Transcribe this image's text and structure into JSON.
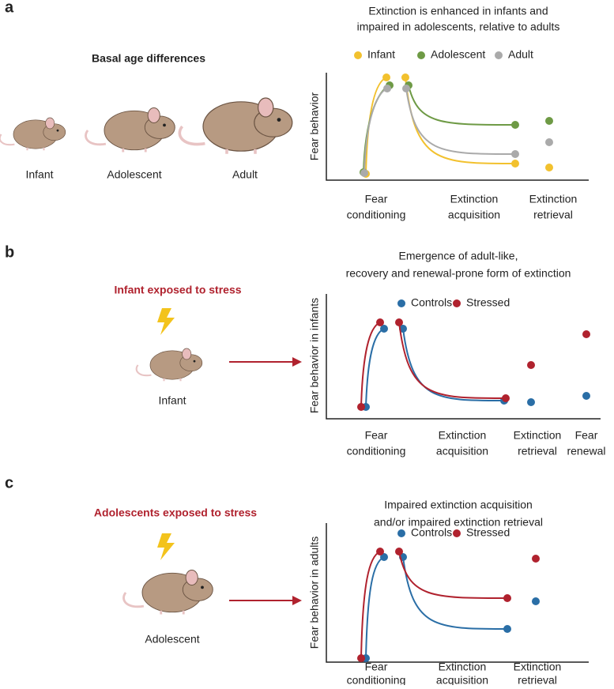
{
  "panels": [
    {
      "label": "a",
      "left": {
        "title": "Basal age differences",
        "mice": [
          "Infant",
          "Adolescent",
          "Adult"
        ]
      },
      "right": {
        "title": [
          "Extinction is enhanced in infants and",
          "impaired in adolescents, relative to adults"
        ],
        "legend": [
          {
            "name": "Infant",
            "color": "#f2c12e"
          },
          {
            "name": "Adolescent",
            "color": "#6e9a45"
          },
          {
            "name": "Adult",
            "color": "#aaaaaa"
          }
        ],
        "y_label": "Fear behavior",
        "phases": [
          [
            "Fear",
            "conditioning"
          ],
          [
            "Extinction",
            "acquisition"
          ],
          [
            "Extinction",
            "retrieval"
          ]
        ]
      }
    },
    {
      "label": "b",
      "left": {
        "title": "Infant exposed to stress",
        "mice": [
          "Infant"
        ]
      },
      "right": {
        "title": [
          "Emergence of adult-like,",
          "recovery and renewal-prone form of extinction"
        ],
        "legend": [
          {
            "name": "Controls",
            "color": "#2a6ea6"
          },
          {
            "name": "Stressed",
            "color": "#b0222e"
          }
        ],
        "y_label": "Fear behavior in infants",
        "phases": [
          [
            "Fear",
            "conditioning"
          ],
          [
            "Extinction",
            "acquisition"
          ],
          [
            "Extinction",
            "retrieval"
          ],
          [
            "Fear",
            "renewal"
          ]
        ]
      }
    },
    {
      "label": "c",
      "left": {
        "title": "Adolescents exposed to stress",
        "mice": [
          "Adolescent"
        ]
      },
      "right": {
        "title": [
          "Impaired extinction acquisition",
          "and/or impaired extinction retrieval"
        ],
        "legend": [
          {
            "name": "Controls",
            "color": "#2a6ea6"
          },
          {
            "name": "Stressed",
            "color": "#b0222e"
          }
        ],
        "y_label": "Fear behavior in adults",
        "phases": [
          [
            "Fear",
            "conditioning"
          ],
          [
            "Extinction",
            "acquisition"
          ],
          [
            "Extinction",
            "retrieval"
          ]
        ]
      }
    }
  ]
}
